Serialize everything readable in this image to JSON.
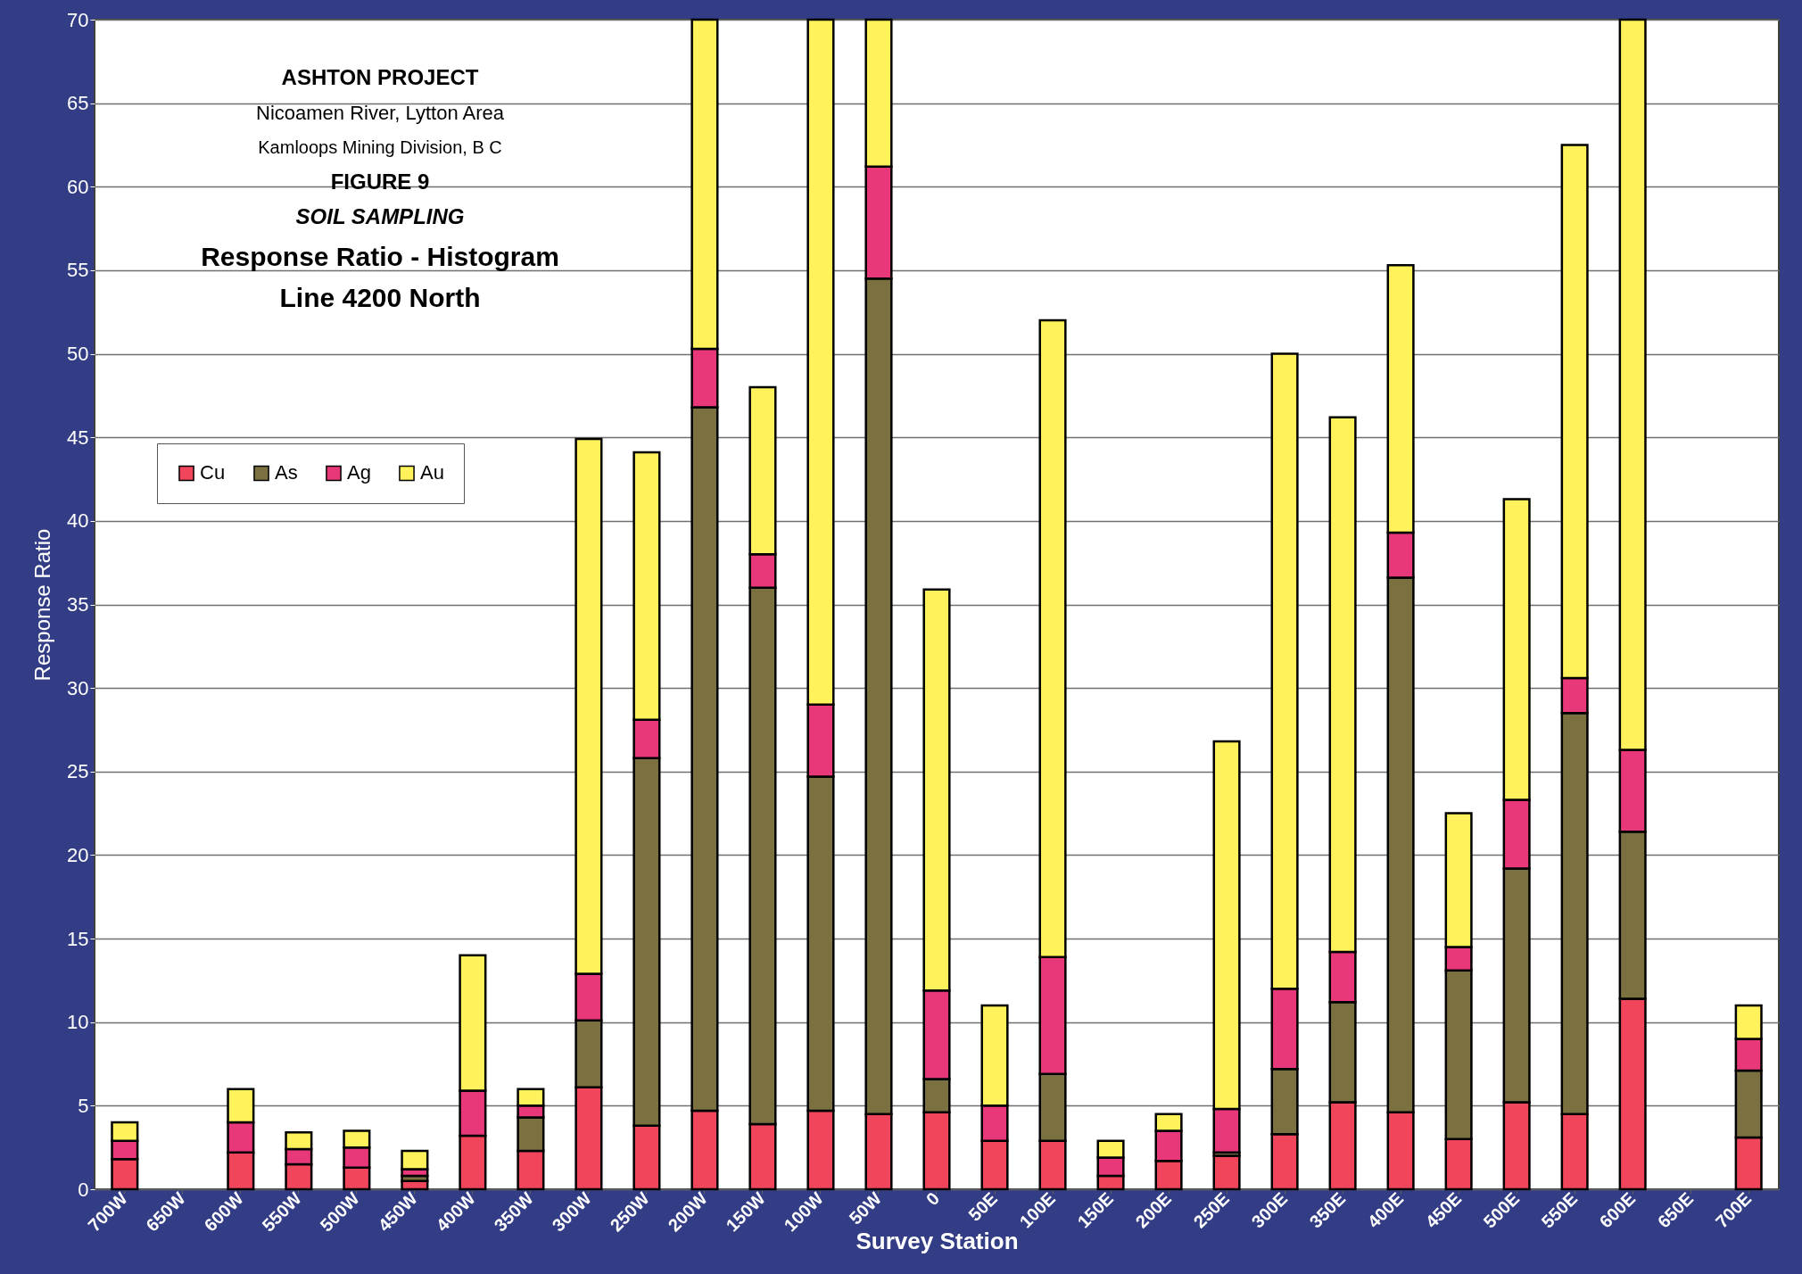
{
  "chart_data": {
    "type": "bar",
    "stacked": true,
    "title": "Response Ratio - Histogram",
    "subtitle": "Line 4200 North",
    "annotations": [
      "ASHTON PROJECT",
      "Nicoamen River, Lytton Area",
      "Kamloops Mining Division, B C",
      "FIGURE  9",
      "SOIL SAMPLING"
    ],
    "xlabel": "Survey Station",
    "ylabel": "Response Ratio",
    "categories": [
      "700W",
      "650W",
      "600W",
      "550W",
      "500W",
      "450W",
      "400W",
      "350W",
      "300W",
      "250W",
      "200W",
      "150W",
      "100W",
      "50W",
      "0",
      "50E",
      "100E",
      "150E",
      "200E",
      "250E",
      "300E",
      "350E",
      "400E",
      "450E",
      "500E",
      "550E",
      "600E",
      "650E",
      "700E"
    ],
    "series": [
      {
        "name": "Cu",
        "color": "#f0455a",
        "values": [
          1.8,
          null,
          2.2,
          1.5,
          1.3,
          0.5,
          3.2,
          2.3,
          6.1,
          3.8,
          4.7,
          3.9,
          4.7,
          4.5,
          4.6,
          2.9,
          2.9,
          0.8,
          1.7,
          2.0,
          3.3,
          5.2,
          4.6,
          3.0,
          5.2,
          4.5,
          11.4,
          null,
          3.1
        ]
      },
      {
        "name": "As",
        "color": "#7a7040",
        "values": [
          null,
          null,
          null,
          null,
          null,
          0.3,
          null,
          2.0,
          4.0,
          22.0,
          42.1,
          32.1,
          20.0,
          50.0,
          2.0,
          null,
          4.0,
          null,
          null,
          0.2,
          3.9,
          6.0,
          32.0,
          10.1,
          14.0,
          24.0,
          10.0,
          null,
          4.0
        ]
      },
      {
        "name": "Ag",
        "color": "#e8387a",
        "values": [
          1.1,
          null,
          1.8,
          0.9,
          1.2,
          0.4,
          2.7,
          0.7,
          2.8,
          2.3,
          3.5,
          2.0,
          4.3,
          6.7,
          5.3,
          2.1,
          7.0,
          1.1,
          1.8,
          2.6,
          4.8,
          3.0,
          2.7,
          1.4,
          4.1,
          2.1,
          4.9,
          null,
          1.9
        ]
      },
      {
        "name": "Au",
        "color": "#fff25a",
        "values": [
          1.1,
          null,
          2.0,
          1.0,
          1.0,
          1.1,
          8.1,
          1.0,
          32.0,
          16.0,
          19.7,
          10.0,
          41.0,
          8.8,
          24.0,
          6.0,
          38.1,
          1.0,
          1.0,
          22.0,
          38.0,
          32.0,
          16.0,
          8.0,
          18.0,
          31.9,
          43.7,
          null,
          2.0
        ]
      }
    ],
    "ylim": [
      0,
      70
    ],
    "yticks": [
      0,
      5,
      10,
      15,
      20,
      25,
      30,
      35,
      40,
      45,
      50,
      55,
      60,
      65,
      70
    ],
    "grid": "y",
    "legend": "top left"
  }
}
